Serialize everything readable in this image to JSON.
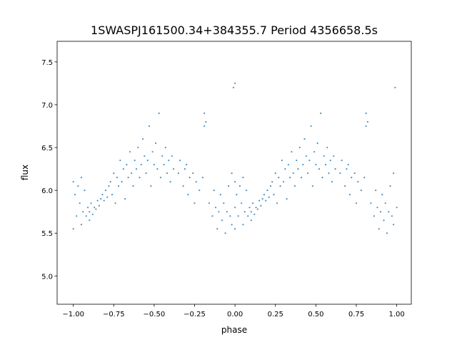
{
  "chart_data": {
    "type": "scatter",
    "title": "1SWASPJ161500.34+384355.7 Period 4356658.5s",
    "xlabel": "phase",
    "ylabel": "flux",
    "xlim": [
      -1.1,
      1.09
    ],
    "ylim": [
      4.67,
      7.74
    ],
    "xticks": [
      -1.0,
      -0.75,
      -0.5,
      -0.25,
      0.0,
      0.25,
      0.5,
      0.75,
      1.0
    ],
    "xtick_labels": [
      "−1.00",
      "−0.75",
      "−0.50",
      "−0.25",
      "0.00",
      "0.25",
      "0.50",
      "0.75",
      "1.00"
    ],
    "yticks": [
      5.0,
      5.5,
      6.0,
      6.5,
      7.0,
      7.5
    ],
    "ytick_labels": [
      "5.0",
      "5.5",
      "6.0",
      "6.5",
      "7.0",
      "7.5"
    ],
    "grid": false,
    "marker_color": "#1f77b4",
    "points": [
      [
        0.0,
        5.8
      ],
      [
        0.0,
        6.1
      ],
      [
        0.0,
        5.55
      ],
      [
        0.0,
        7.25
      ],
      [
        0.01,
        5.95
      ],
      [
        0.02,
        5.7
      ],
      [
        0.03,
        6.05
      ],
      [
        0.04,
        5.85
      ],
      [
        0.05,
        5.6
      ],
      [
        0.05,
        6.15
      ],
      [
        0.06,
        5.75
      ],
      [
        0.07,
        6.0
      ],
      [
        0.08,
        5.7
      ],
      [
        0.09,
        5.8
      ],
      [
        0.1,
        5.75
      ],
      [
        0.1,
        5.65
      ],
      [
        0.11,
        5.85
      ],
      [
        0.12,
        5.72
      ],
      [
        0.13,
        5.8
      ],
      [
        0.14,
        5.78
      ],
      [
        0.15,
        5.88
      ],
      [
        0.16,
        5.82
      ],
      [
        0.17,
        5.9
      ],
      [
        0.18,
        5.95
      ],
      [
        0.19,
        5.88
      ],
      [
        0.2,
        6.0
      ],
      [
        0.21,
        5.92
      ],
      [
        0.22,
        6.05
      ],
      [
        0.23,
        6.1
      ],
      [
        0.24,
        5.95
      ],
      [
        0.25,
        6.2
      ],
      [
        0.26,
        5.85
      ],
      [
        0.27,
        6.15
      ],
      [
        0.28,
        6.05
      ],
      [
        0.29,
        6.35
      ],
      [
        0.3,
        6.1
      ],
      [
        0.31,
        6.25
      ],
      [
        0.32,
        5.9
      ],
      [
        0.33,
        6.3
      ],
      [
        0.34,
        6.15
      ],
      [
        0.35,
        6.45
      ],
      [
        0.36,
        6.2
      ],
      [
        0.37,
        6.05
      ],
      [
        0.38,
        6.35
      ],
      [
        0.39,
        6.25
      ],
      [
        0.4,
        6.5
      ],
      [
        0.41,
        6.15
      ],
      [
        0.42,
        6.3
      ],
      [
        0.43,
        6.6
      ],
      [
        0.44,
        6.4
      ],
      [
        0.45,
        6.2
      ],
      [
        0.46,
        6.35
      ],
      [
        0.47,
        6.75
      ],
      [
        0.48,
        6.05
      ],
      [
        0.49,
        6.45
      ],
      [
        0.5,
        6.3
      ],
      [
        0.51,
        6.55
      ],
      [
        0.52,
        6.25
      ],
      [
        0.53,
        6.9
      ],
      [
        0.54,
        6.15
      ],
      [
        0.55,
        6.4
      ],
      [
        0.56,
        6.3
      ],
      [
        0.57,
        6.5
      ],
      [
        0.58,
        6.2
      ],
      [
        0.59,
        6.35
      ],
      [
        0.6,
        6.1
      ],
      [
        0.61,
        6.4
      ],
      [
        0.62,
        6.25
      ],
      [
        0.65,
        6.2
      ],
      [
        0.66,
        6.35
      ],
      [
        0.68,
        6.05
      ],
      [
        0.69,
        6.25
      ],
      [
        0.7,
        6.3
      ],
      [
        0.71,
        5.95
      ],
      [
        0.72,
        6.15
      ],
      [
        0.74,
        6.2
      ],
      [
        0.75,
        5.85
      ],
      [
        0.76,
        6.1
      ],
      [
        0.78,
        6.0
      ],
      [
        0.8,
        6.15
      ],
      [
        0.81,
        6.9
      ],
      [
        0.81,
        6.75
      ],
      [
        0.82,
        6.8
      ],
      [
        0.84,
        5.85
      ],
      [
        0.86,
        5.7
      ],
      [
        0.87,
        6.0
      ],
      [
        0.88,
        5.8
      ],
      [
        0.89,
        5.55
      ],
      [
        0.9,
        5.75
      ],
      [
        0.91,
        5.95
      ],
      [
        0.92,
        5.65
      ],
      [
        0.93,
        5.85
      ],
      [
        0.94,
        5.5
      ],
      [
        0.95,
        5.75
      ],
      [
        0.96,
        6.05
      ],
      [
        0.97,
        5.7
      ],
      [
        0.98,
        6.2
      ],
      [
        0.98,
        5.6
      ],
      [
        0.99,
        7.2
      ],
      [
        1.0,
        5.8
      ],
      [
        -1.0,
        6.1
      ],
      [
        -1.0,
        5.55
      ],
      [
        -0.99,
        5.95
      ],
      [
        -0.98,
        5.7
      ],
      [
        -0.97,
        6.05
      ],
      [
        -0.96,
        5.85
      ],
      [
        -0.95,
        5.6
      ],
      [
        -0.95,
        6.15
      ],
      [
        -0.94,
        5.75
      ],
      [
        -0.93,
        6.0
      ],
      [
        -0.92,
        5.7
      ],
      [
        -0.91,
        5.8
      ],
      [
        -0.9,
        5.75
      ],
      [
        -0.9,
        5.65
      ],
      [
        -0.89,
        5.85
      ],
      [
        -0.88,
        5.72
      ],
      [
        -0.87,
        5.8
      ],
      [
        -0.86,
        5.78
      ],
      [
        -0.85,
        5.88
      ],
      [
        -0.84,
        5.82
      ],
      [
        -0.83,
        5.9
      ],
      [
        -0.82,
        5.95
      ],
      [
        -0.81,
        5.88
      ],
      [
        -0.8,
        6.0
      ],
      [
        -0.79,
        5.92
      ],
      [
        -0.78,
        6.05
      ],
      [
        -0.77,
        6.1
      ],
      [
        -0.76,
        5.95
      ],
      [
        -0.75,
        6.2
      ],
      [
        -0.74,
        5.85
      ],
      [
        -0.73,
        6.15
      ],
      [
        -0.72,
        6.05
      ],
      [
        -0.71,
        6.35
      ],
      [
        -0.7,
        6.1
      ],
      [
        -0.69,
        6.25
      ],
      [
        -0.68,
        5.9
      ],
      [
        -0.67,
        6.3
      ],
      [
        -0.66,
        6.15
      ],
      [
        -0.65,
        6.45
      ],
      [
        -0.64,
        6.2
      ],
      [
        -0.63,
        6.05
      ],
      [
        -0.62,
        6.35
      ],
      [
        -0.61,
        6.25
      ],
      [
        -0.6,
        6.5
      ],
      [
        -0.59,
        6.15
      ],
      [
        -0.58,
        6.3
      ],
      [
        -0.57,
        6.6
      ],
      [
        -0.56,
        6.4
      ],
      [
        -0.55,
        6.2
      ],
      [
        -0.54,
        6.35
      ],
      [
        -0.53,
        6.75
      ],
      [
        -0.52,
        6.05
      ],
      [
        -0.51,
        6.45
      ],
      [
        -0.5,
        6.3
      ],
      [
        -0.49,
        6.55
      ],
      [
        -0.48,
        6.25
      ],
      [
        -0.47,
        6.9
      ],
      [
        -0.46,
        6.15
      ],
      [
        -0.45,
        6.4
      ],
      [
        -0.44,
        6.3
      ],
      [
        -0.43,
        6.5
      ],
      [
        -0.42,
        6.2
      ],
      [
        -0.41,
        6.35
      ],
      [
        -0.4,
        6.1
      ],
      [
        -0.39,
        6.4
      ],
      [
        -0.38,
        6.25
      ],
      [
        -0.35,
        6.2
      ],
      [
        -0.34,
        6.35
      ],
      [
        -0.32,
        6.05
      ],
      [
        -0.31,
        6.25
      ],
      [
        -0.3,
        6.3
      ],
      [
        -0.29,
        5.95
      ],
      [
        -0.28,
        6.15
      ],
      [
        -0.26,
        6.2
      ],
      [
        -0.25,
        5.85
      ],
      [
        -0.24,
        6.1
      ],
      [
        -0.22,
        6.0
      ],
      [
        -0.2,
        6.15
      ],
      [
        -0.19,
        6.9
      ],
      [
        -0.19,
        6.75
      ],
      [
        -0.18,
        6.8
      ],
      [
        -0.16,
        5.85
      ],
      [
        -0.14,
        5.7
      ],
      [
        -0.13,
        6.0
      ],
      [
        -0.12,
        5.8
      ],
      [
        -0.11,
        5.55
      ],
      [
        -0.1,
        5.75
      ],
      [
        -0.09,
        5.95
      ],
      [
        -0.08,
        5.65
      ],
      [
        -0.07,
        5.85
      ],
      [
        -0.06,
        5.5
      ],
      [
        -0.05,
        5.75
      ],
      [
        -0.04,
        6.05
      ],
      [
        -0.03,
        5.7
      ],
      [
        -0.02,
        6.2
      ],
      [
        -0.02,
        5.6
      ],
      [
        -0.01,
        7.2
      ]
    ]
  }
}
